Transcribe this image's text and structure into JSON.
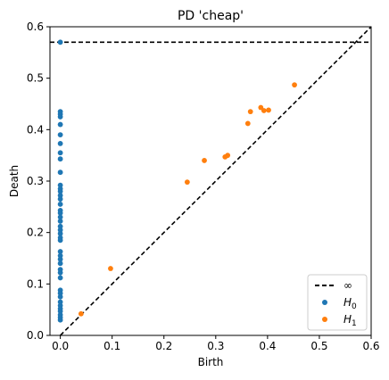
{
  "chart_data": {
    "type": "scatter",
    "title": "PD 'cheap'",
    "xlabel": "Birth",
    "ylabel": "Death",
    "xlim": [
      -0.02,
      0.6
    ],
    "ylim": [
      0.0,
      0.6
    ],
    "xticks": [
      "0.0",
      "0.1",
      "0.2",
      "0.3",
      "0.4",
      "0.5",
      "0.6"
    ],
    "yticks": [
      "0.0",
      "0.1",
      "0.2",
      "0.3",
      "0.4",
      "0.5",
      "0.6"
    ],
    "grid": false,
    "legend_position": "lower-right",
    "legend": {
      "infinity_label": "∞",
      "h0_label": "H",
      "h0_sub": "0",
      "h1_label": "H",
      "h1_sub": "1"
    },
    "colors": {
      "h0": "#1f77b4",
      "h1": "#ff7f0e",
      "lines": "#000000"
    },
    "infinity_death": 0.57,
    "series": [
      {
        "name": "H0",
        "x": [
          0,
          0,
          0,
          0,
          0,
          0,
          0,
          0,
          0,
          0,
          0,
          0,
          0,
          0,
          0,
          0,
          0,
          0,
          0,
          0,
          0,
          0,
          0,
          0,
          0,
          0,
          0,
          0,
          0,
          0,
          0,
          0,
          0,
          0,
          0,
          0,
          0,
          0,
          0,
          0,
          0,
          0
        ],
        "y": [
          0.57,
          0.435,
          0.43,
          0.425,
          0.41,
          0.39,
          0.373,
          0.355,
          0.343,
          0.317,
          0.292,
          0.285,
          0.28,
          0.272,
          0.265,
          0.255,
          0.243,
          0.238,
          0.23,
          0.222,
          0.212,
          0.205,
          0.198,
          0.19,
          0.185,
          0.163,
          0.155,
          0.148,
          0.14,
          0.128,
          0.122,
          0.112,
          0.088,
          0.082,
          0.075,
          0.065,
          0.058,
          0.052,
          0.047,
          0.04,
          0.035,
          0.03
        ]
      },
      {
        "name": "H1",
        "x": [
          0.04,
          0.097,
          0.245,
          0.278,
          0.318,
          0.323,
          0.362,
          0.367,
          0.387,
          0.393,
          0.402,
          0.452
        ],
        "y": [
          0.042,
          0.13,
          0.298,
          0.34,
          0.347,
          0.35,
          0.412,
          0.435,
          0.443,
          0.437,
          0.438,
          0.487
        ]
      }
    ]
  }
}
